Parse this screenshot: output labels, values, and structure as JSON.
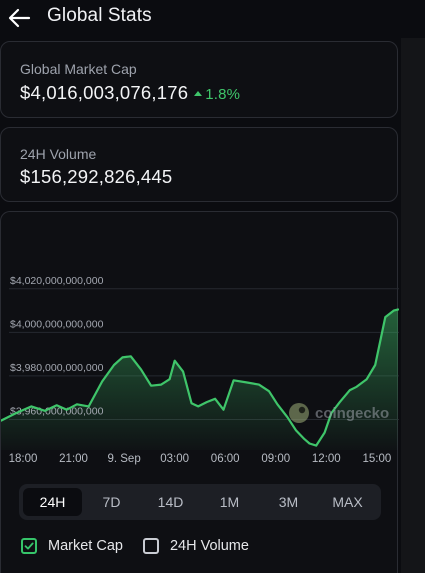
{
  "header": {
    "title": "Global Stats",
    "back_icon": "arrow-left-icon"
  },
  "market_cap": {
    "label": "Global Market Cap",
    "value": "$4,016,003,076,176",
    "change": "1.8%",
    "change_color": "#3fc56a"
  },
  "volume": {
    "label": "24H Volume",
    "value": "$156,292,826,445"
  },
  "chart": {
    "watermark": "coingecko",
    "line_color": "#3fc56a"
  },
  "tabs": [
    {
      "label": "24H",
      "active": true
    },
    {
      "label": "7D",
      "active": false
    },
    {
      "label": "14D",
      "active": false
    },
    {
      "label": "1M",
      "active": false
    },
    {
      "label": "3M",
      "active": false
    },
    {
      "label": "MAX",
      "active": false
    }
  ],
  "toggles": [
    {
      "label": "Market Cap",
      "checked": true
    },
    {
      "label": "24H Volume",
      "checked": false
    }
  ],
  "chart_data": {
    "type": "area",
    "y_tick_labels": [
      "$4,020,000,000,000",
      "$4,000,000,000,000",
      "$3,980,000,000,000",
      "$3,960,000,000,000"
    ],
    "y_ticks": [
      4020000000000,
      4000000000000,
      3980000000000,
      3960000000000
    ],
    "x_tick_labels": [
      "18:00",
      "21:00",
      "9. Sep",
      "03:00",
      "06:00",
      "09:00",
      "12:00",
      "15:00"
    ],
    "x_ticks_hours": [
      0,
      3,
      6,
      9,
      12,
      15,
      18,
      21
    ],
    "ylim": [
      3946000000000,
      4030000000000
    ],
    "x": [
      -1.3,
      -0.4,
      0.5,
      1.3,
      2.0,
      2.6,
      3.2,
      3.9,
      4.7,
      5.4,
      5.9,
      6.4,
      7.0,
      7.6,
      8.2,
      8.7,
      9.0,
      9.5,
      10.0,
      10.4,
      10.9,
      11.4,
      11.9,
      12.5,
      13.3,
      14.0,
      14.6,
      15.1,
      15.7,
      16.2,
      16.7,
      17.0,
      17.4,
      17.9,
      18.3,
      18.8,
      19.4,
      19.8,
      20.4,
      20.9,
      21.5,
      22.0,
      22.8
    ],
    "y": [
      3959500000000,
      3963000000000,
      3966000000000,
      3964000000000,
      3966500000000,
      3964500000000,
      3967000000000,
      3966000000000,
      3977500000000,
      3985000000000,
      3988500000000,
      3989000000000,
      3983000000000,
      3975500000000,
      3976000000000,
      3978500000000,
      3987000000000,
      3982000000000,
      3967500000000,
      3966000000000,
      3968000000000,
      3969500000000,
      3964500000000,
      3978000000000,
      3977000000000,
      3976000000000,
      3973000000000,
      3967000000000,
      3961000000000,
      3955000000000,
      3951000000000,
      3949000000000,
      3948000000000,
      3954000000000,
      3963000000000,
      3968000000000,
      3973500000000,
      3975000000000,
      3978500000000,
      3985000000000,
      4007000000000,
      4010000000000,
      4010500000000
    ]
  }
}
